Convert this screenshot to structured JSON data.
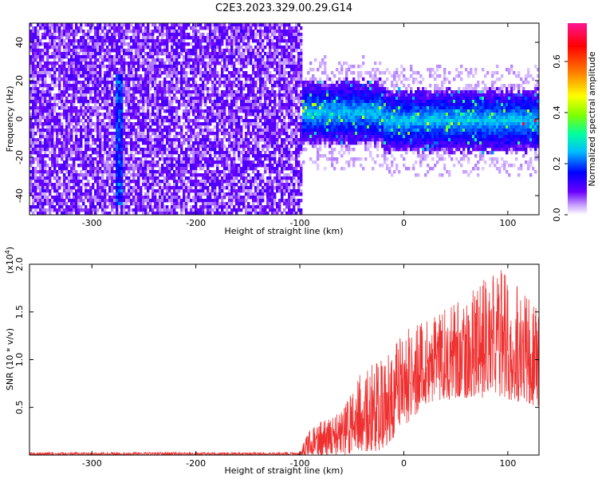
{
  "title": "C2E3.2023.329.00.29.G14",
  "chart_data": [
    {
      "type": "heatmap",
      "xlabel": "Height of straight line (km)",
      "ylabel": "Frequency (Hz)",
      "xlim": [
        -360,
        130
      ],
      "ylim": [
        -50,
        50
      ],
      "x_ticks": [
        -300,
        -200,
        -100,
        0,
        100
      ],
      "y_ticks": [
        -40,
        -20,
        0,
        20,
        40
      ],
      "colorbar": {
        "label": "Normalized spectral amplitude",
        "range": [
          0.0,
          0.75
        ],
        "ticks": [
          0.0,
          0.2,
          0.4,
          0.6
        ],
        "colormap": [
          "#ffffff",
          "#c7a0ff",
          "#6a00ff",
          "#0000ff",
          "#00bfff",
          "#00ffa0",
          "#7fff00",
          "#ffff00",
          "#ff8000",
          "#ff0000",
          "#ff1493"
        ]
      },
      "regions": [
        {
          "x_range": [
            -360,
            -100
          ],
          "frequency_range": [
            -50,
            50
          ],
          "typical_amplitude": 0.08
        },
        {
          "x_range": [
            -100,
            130
          ],
          "frequency_center": 0,
          "frequency_halfwidth": 15,
          "typical_amplitude": 0.2,
          "peak_amplitude": 0.7
        }
      ],
      "features": [
        {
          "x": -275,
          "frequency_range": [
            -45,
            25
          ],
          "amplitude": 0.2
        }
      ]
    },
    {
      "type": "line",
      "xlabel": "Height of straight line (km)",
      "ylabel": "SNR (10 * v/v)",
      "y_multiplier": "(x10^4)",
      "xlim": [
        -360,
        130
      ],
      "ylim": [
        0,
        2.0
      ],
      "x_ticks": [
        -300,
        -200,
        -100,
        0,
        100
      ],
      "y_ticks": [
        0.5,
        1.0,
        1.5,
        2.0
      ],
      "series": [
        {
          "color": "#ef3030",
          "envelope": [
            {
              "x": -360,
              "low": 0.0,
              "high": 0.03
            },
            {
              "x": -100,
              "low": 0.0,
              "high": 0.03
            },
            {
              "x": -90,
              "low": 0.0,
              "high": 0.3
            },
            {
              "x": -60,
              "low": 0.0,
              "high": 0.45
            },
            {
              "x": -40,
              "low": 0.03,
              "high": 0.9
            },
            {
              "x": -20,
              "low": 0.05,
              "high": 1.0
            },
            {
              "x": 0,
              "low": 0.3,
              "high": 1.3
            },
            {
              "x": 20,
              "low": 0.5,
              "high": 1.4
            },
            {
              "x": 50,
              "low": 0.6,
              "high": 1.6
            },
            {
              "x": 95,
              "low": 0.6,
              "high": 2.0
            },
            {
              "x": 130,
              "low": 0.5,
              "high": 1.5
            }
          ]
        }
      ]
    }
  ]
}
